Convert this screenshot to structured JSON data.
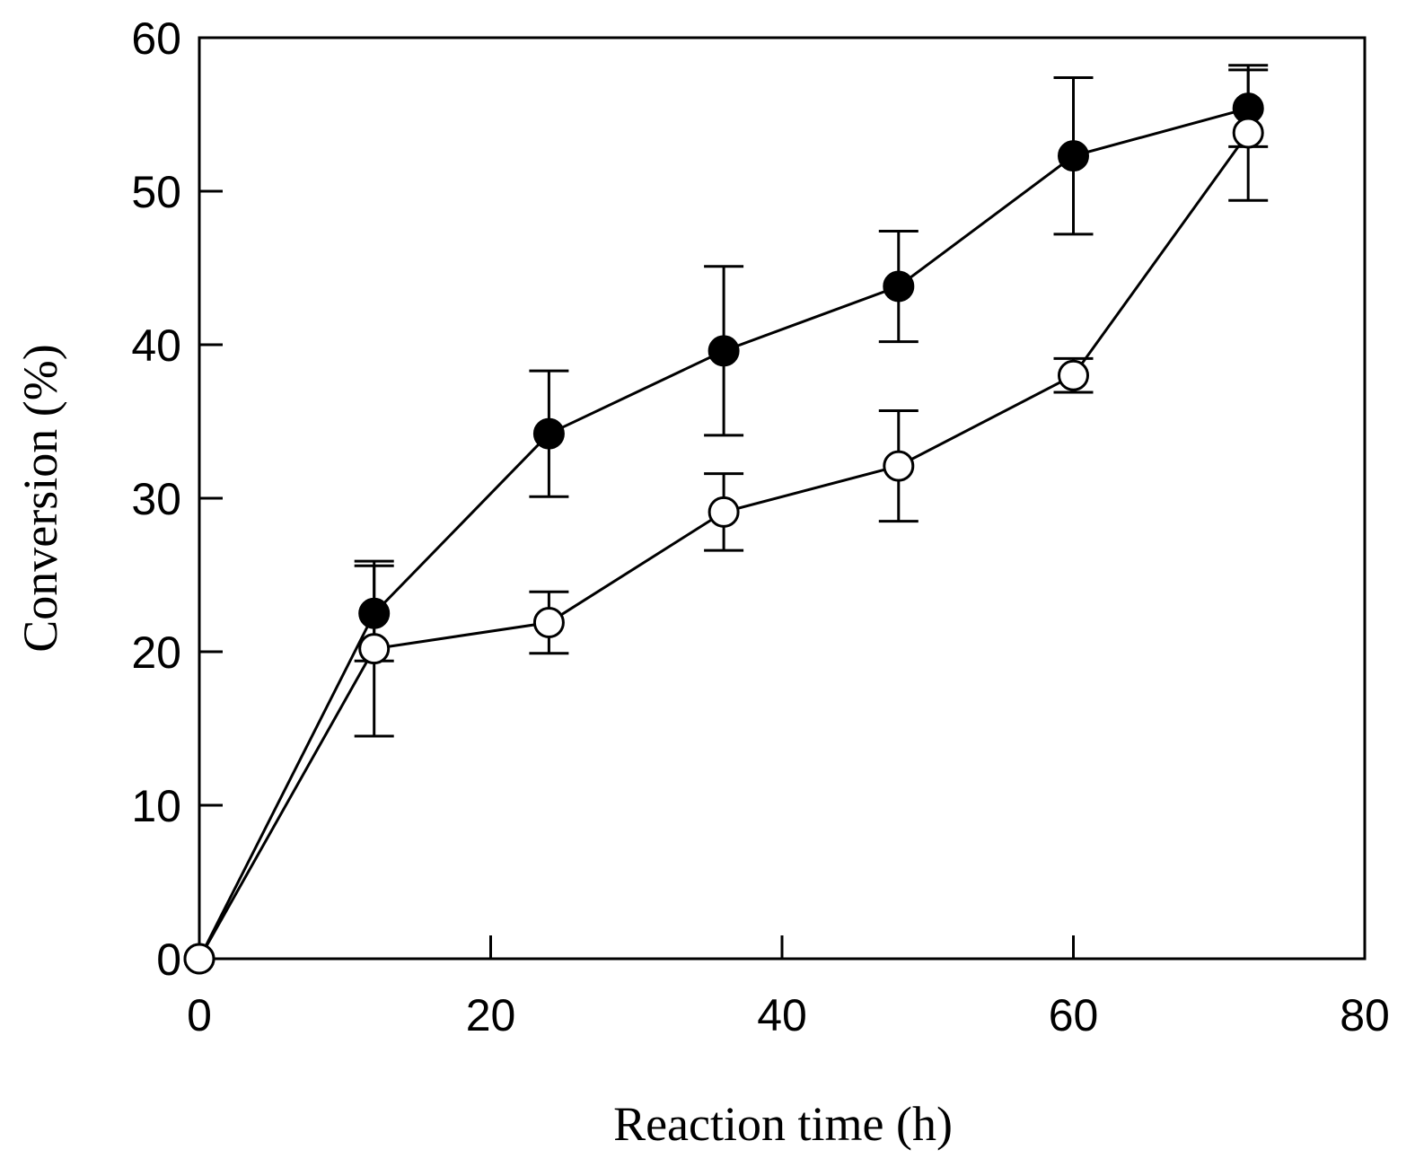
{
  "chart_data": {
    "type": "line",
    "title": "",
    "xlabel": "Reaction time (h)",
    "ylabel": "Conversion (%)",
    "xlim": [
      0,
      80
    ],
    "ylim": [
      0,
      60
    ],
    "xticks": [
      0,
      20,
      40,
      60,
      80
    ],
    "yticks": [
      0,
      10,
      20,
      30,
      40,
      50,
      60
    ],
    "grid": false,
    "series": [
      {
        "name": "filled circles",
        "marker": "filled-circle",
        "x": [
          0,
          12,
          24,
          36,
          48,
          60,
          72
        ],
        "values": [
          0,
          22.5,
          34.2,
          39.6,
          43.8,
          52.3,
          55.4
        ],
        "error": [
          0,
          3.1,
          4.1,
          5.5,
          3.6,
          5.1,
          2.5
        ]
      },
      {
        "name": "open circles",
        "marker": "open-circle",
        "x": [
          0,
          12,
          24,
          36,
          48,
          60,
          72
        ],
        "values": [
          0,
          20.2,
          21.9,
          29.1,
          32.1,
          38.0,
          53.8
        ],
        "error": [
          0,
          5.7,
          2.0,
          2.5,
          3.6,
          1.1,
          4.4
        ]
      }
    ]
  }
}
